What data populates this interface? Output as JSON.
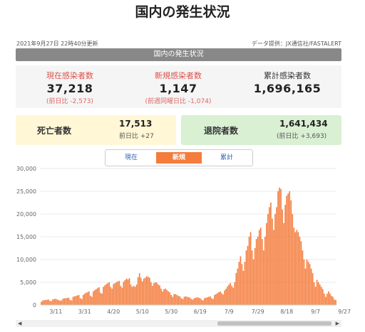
{
  "page": {
    "title": "国内の発生状況",
    "updated": "2021年9月27日 22時40分更新",
    "source": "データ提供：JX通信社/FASTALERT",
    "section_header": "国内の発生状況"
  },
  "stats": {
    "current": {
      "label": "現在感染者数",
      "value": "37,218",
      "sub": "(前日比 -2,573)"
    },
    "new": {
      "label": "新規感染者数",
      "value": "1,147",
      "sub": "(前週同曜日比 -1,074)"
    },
    "total": {
      "label": "累計感染者数",
      "value": "1,696,165"
    }
  },
  "deaths": {
    "label": "死亡者数",
    "value": "17,513",
    "sub": "前日比 +27"
  },
  "recovered": {
    "label": "退院者数",
    "value": "1,641,434",
    "sub": "(前日比 +3,693)"
  },
  "tabs": [
    {
      "label": "現在",
      "active": false
    },
    {
      "label": "新規",
      "active": true
    },
    {
      "label": "累計",
      "active": false
    }
  ],
  "colors": {
    "bar": "#f47c3c",
    "accent": "#f47c3c",
    "link": "#2d5fb3",
    "red": "#d9534f"
  },
  "chart_data": {
    "type": "bar",
    "x_start": "2021-03-01",
    "x_end": "2021-09-27",
    "ylim": [
      0,
      30000
    ],
    "yticks": [
      "30,000",
      "25,000",
      "20,000",
      "15,000",
      "10,000",
      "5,000",
      "0"
    ],
    "xticks": [
      "3/11",
      "3/31",
      "4/20",
      "5/10",
      "5/30",
      "6/19",
      "7/9",
      "7/29",
      "8/18",
      "9/7",
      "9/27"
    ],
    "values": [
      700,
      1000,
      1050,
      1100,
      1150,
      1200,
      900,
      850,
      1250,
      1300,
      1350,
      1200,
      1100,
      950,
      1000,
      1400,
      1450,
      1500,
      1550,
      1600,
      1100,
      1000,
      1800,
      1900,
      2000,
      2100,
      2200,
      1500,
      1300,
      2200,
      2500,
      2700,
      2800,
      3000,
      2000,
      1800,
      3000,
      3300,
      3500,
      3700,
      3900,
      2700,
      2500,
      4000,
      4300,
      4600,
      4800,
      5000,
      4000,
      3600,
      4600,
      4800,
      5000,
      5200,
      5300,
      4200,
      3800,
      5100,
      5500,
      5800,
      5600,
      5900,
      4500,
      4000,
      4200,
      4000,
      4500,
      6100,
      7000,
      6000,
      5200,
      5800,
      6000,
      6300,
      6200,
      6000,
      5000,
      4200,
      4800,
      5000,
      4900,
      4500,
      4300,
      3600,
      3000,
      3500,
      3600,
      3300,
      3000,
      2800,
      2200,
      1800,
      2400,
      2400,
      2200,
      2000,
      1900,
      1500,
      1300,
      1800,
      1900,
      1800,
      1700,
      1600,
      1300,
      1200,
      1500,
      1600,
      1700,
      1600,
      1500,
      1200,
      1000,
      1500,
      1600,
      1700,
      1800,
      1900,
      1500,
      1300,
      2200,
      2400,
      2600,
      2800,
      3000,
      2600,
      2300,
      3200,
      3600,
      4100,
      4500,
      4800,
      4200,
      3800,
      5000,
      7000,
      8000,
      9500,
      10700,
      9000,
      7500,
      9500,
      12000,
      13000,
      15000,
      16000,
      12000,
      10000,
      12500,
      14500,
      15000,
      16500,
      17000,
      14500,
      12000,
      15000,
      18000,
      20000,
      21500,
      22500,
      19000,
      16500,
      20000,
      21500,
      25000,
      25800,
      25500,
      21000,
      18000,
      22000,
      24000,
      24500,
      25000,
      23000,
      20000,
      17000,
      16000,
      16500,
      16000,
      15000,
      14000,
      12000,
      10000,
      8000,
      10000,
      9500,
      9000,
      8000,
      7000,
      5000,
      4000,
      5500,
      5000,
      4500,
      4000,
      3500,
      2500,
      1800,
      2500,
      3000,
      2500,
      2000,
      1800,
      1200,
      1100
    ]
  }
}
